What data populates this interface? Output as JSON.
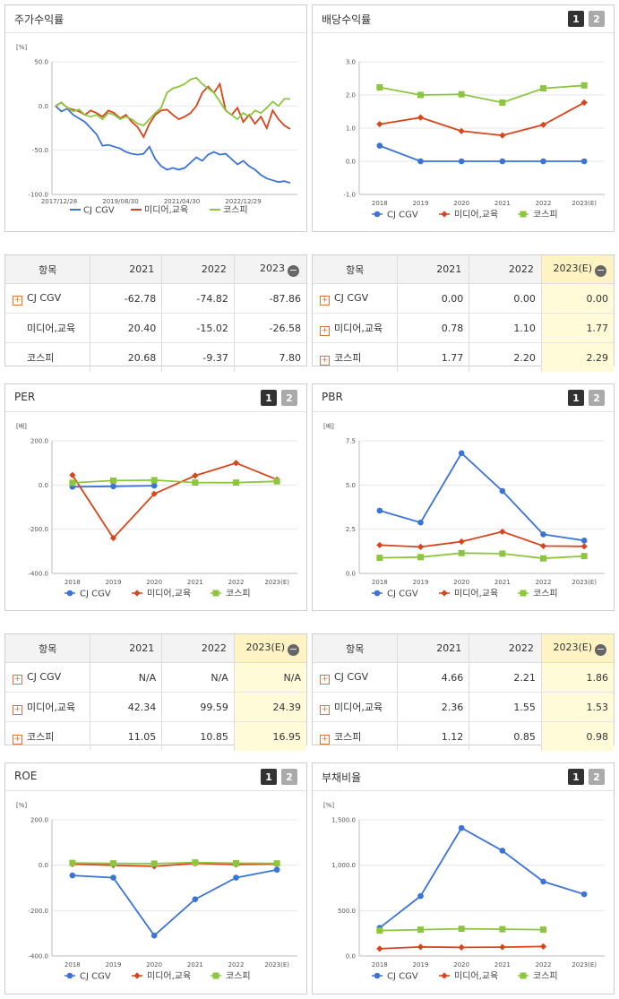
{
  "colors": {
    "cj": "#3b73d6",
    "media": "#d8441c",
    "kospi": "#8cc63f"
  },
  "legend": [
    "CJ CGV",
    "미디어,교육",
    "코스피"
  ],
  "panels": {
    "stock": {
      "title": "주가수익률"
    },
    "div": {
      "title": "배당수익률",
      "page1": "1",
      "page2": "2"
    },
    "per": {
      "title": "PER",
      "page1": "1",
      "page2": "2"
    },
    "pbr": {
      "title": "PBR",
      "page1": "1",
      "page2": "2"
    },
    "roe": {
      "title": "ROE",
      "page1": "1",
      "page2": "2"
    },
    "debt": {
      "title": "부채비율",
      "page1": "1",
      "page2": "2"
    }
  },
  "chart_data": [
    {
      "id": "stock",
      "type": "line",
      "title": "주가수익률",
      "unit": "[%]",
      "ylim": [
        -100,
        50
      ],
      "yticks": [
        "50.0",
        "0.0",
        "-50.0",
        "-100.0"
      ],
      "xticks": [
        "2017/12/28",
        "2019/08/30",
        "2021/04/30",
        "2022/12/29"
      ],
      "series": [
        {
          "name": "CJ CGV",
          "values": [
            0,
            -6,
            -3,
            -10,
            -14,
            -18,
            -25,
            -32,
            -45,
            -44,
            -46,
            -48,
            -52,
            -54,
            -55,
            -54,
            -46,
            -60,
            -68,
            -72,
            -70,
            -72,
            -70,
            -64,
            -58,
            -62,
            -55,
            -52,
            -55,
            -54,
            -60,
            -66,
            -62,
            -68,
            -72,
            -78,
            -82,
            -84,
            -86,
            -85,
            -87
          ]
        },
        {
          "name": "미디어,교육",
          "values": [
            0,
            4,
            -2,
            -4,
            -6,
            -10,
            -5,
            -8,
            -12,
            -5,
            -8,
            -14,
            -10,
            -18,
            -24,
            -35,
            -20,
            -10,
            -5,
            -4,
            -10,
            -15,
            -12,
            -8,
            0,
            15,
            22,
            15,
            25,
            -5,
            -10,
            -2,
            -18,
            -10,
            -20,
            -12,
            -25,
            -5,
            -15,
            -22,
            -26
          ]
        },
        {
          "name": "코스피",
          "values": [
            0,
            4,
            -2,
            -6,
            -4,
            -10,
            -12,
            -10,
            -15,
            -8,
            -10,
            -15,
            -12,
            -15,
            -20,
            -22,
            -15,
            -8,
            -2,
            15,
            20,
            22,
            25,
            30,
            32,
            25,
            20,
            15,
            5,
            -5,
            -10,
            -15,
            -8,
            -12,
            -5,
            -8,
            -2,
            5,
            0,
            8,
            8
          ]
        }
      ]
    },
    {
      "id": "div",
      "type": "line",
      "title": "배당수익률",
      "ylim": [
        -1,
        3
      ],
      "yticks": [
        "3.0",
        "2.0",
        "1.0",
        "0.0",
        "-1.0"
      ],
      "categories": [
        "2018",
        "2019",
        "2020",
        "2021",
        "2022",
        "2023(E)"
      ],
      "series": [
        {
          "name": "CJ CGV",
          "values": [
            0.47,
            0,
            0,
            0,
            0,
            0
          ]
        },
        {
          "name": "미디어,교육",
          "values": [
            1.12,
            1.32,
            0.91,
            0.78,
            1.1,
            1.77
          ]
        },
        {
          "name": "코스피",
          "values": [
            2.23,
            2.0,
            2.02,
            1.77,
            2.2,
            2.29
          ]
        }
      ]
    },
    {
      "id": "per",
      "type": "line",
      "title": "PER",
      "unit": "[배]",
      "ylim": [
        -400,
        200
      ],
      "yticks": [
        "200.0",
        "0.0",
        "-200.0",
        "-400.0"
      ],
      "categories": [
        "2018",
        "2019",
        "2020",
        "2021",
        "2022",
        "2023(E)"
      ],
      "series": [
        {
          "name": "CJ CGV",
          "values": [
            -8,
            -6,
            -3,
            null,
            null,
            null
          ]
        },
        {
          "name": "미디어,교육",
          "values": [
            45,
            -240,
            -40,
            42.34,
            99.59,
            24.39
          ]
        },
        {
          "name": "코스피",
          "values": [
            10,
            20,
            22,
            11.05,
            10.85,
            16.95
          ]
        }
      ]
    },
    {
      "id": "pbr",
      "type": "line",
      "title": "PBR",
      "unit": "[배]",
      "ylim": [
        0,
        7.5
      ],
      "yticks": [
        "7.5",
        "5.0",
        "2.5",
        "0.0"
      ],
      "categories": [
        "2018",
        "2019",
        "2020",
        "2021",
        "2022",
        "2023(E)"
      ],
      "series": [
        {
          "name": "CJ CGV",
          "values": [
            3.55,
            2.88,
            6.8,
            4.66,
            2.21,
            1.86
          ]
        },
        {
          "name": "미디어,교육",
          "values": [
            1.6,
            1.5,
            1.8,
            2.36,
            1.55,
            1.53
          ]
        },
        {
          "name": "코스피",
          "values": [
            0.88,
            0.92,
            1.15,
            1.12,
            0.85,
            0.98
          ]
        }
      ]
    },
    {
      "id": "roe",
      "type": "line",
      "title": "ROE",
      "unit": "[%]",
      "ylim": [
        -400,
        200
      ],
      "yticks": [
        "200.0",
        "0.0",
        "-200.0",
        "-400.0"
      ],
      "categories": [
        "2018",
        "2019",
        "2020",
        "2021",
        "2022",
        "2023(E)"
      ],
      "series": [
        {
          "name": "CJ CGV",
          "values": [
            -45,
            -55,
            -310,
            -150,
            -55,
            -20
          ]
        },
        {
          "name": "미디어,교육",
          "values": [
            5,
            0,
            -5,
            8,
            3,
            5
          ]
        },
        {
          "name": "코스피",
          "values": [
            10,
            8,
            7,
            12,
            9,
            8
          ]
        }
      ]
    },
    {
      "id": "debt",
      "type": "line",
      "title": "부채비율",
      "unit": "[%]",
      "ylim": [
        0,
        1500
      ],
      "yticks": [
        "1,500.0",
        "1,000.0",
        "500.0",
        "0.0"
      ],
      "categories": [
        "2018",
        "2019",
        "2020",
        "2021",
        "2022",
        "2023(E)"
      ],
      "series": [
        {
          "name": "CJ CGV",
          "values": [
            310,
            660,
            1410,
            1160,
            820,
            680
          ]
        },
        {
          "name": "미디어,교육",
          "values": [
            80,
            100,
            95,
            98,
            105,
            null
          ]
        },
        {
          "name": "코스피",
          "values": [
            280,
            290,
            300,
            295,
            290,
            null
          ]
        }
      ]
    }
  ],
  "tables": {
    "stock": {
      "header": [
        "항목",
        "2021",
        "2022",
        "2023"
      ],
      "rows": [
        {
          "label": "CJ CGV",
          "plus": true,
          "values": [
            "-62.78",
            "-74.82",
            "-87.86"
          ]
        },
        {
          "label": "미디어,교육",
          "plus": false,
          "values": [
            "20.40",
            "-15.02",
            "-26.58"
          ]
        },
        {
          "label": "코스피",
          "plus": false,
          "values": [
            "20.68",
            "-9.37",
            "7.80"
          ]
        }
      ]
    },
    "div": {
      "header": [
        "항목",
        "2021",
        "2022",
        "2023(E)"
      ],
      "rows": [
        {
          "label": "CJ CGV",
          "plus": true,
          "values": [
            "0.00",
            "0.00",
            "0.00"
          ]
        },
        {
          "label": "미디어,교육",
          "plus": true,
          "values": [
            "0.78",
            "1.10",
            "1.77"
          ]
        },
        {
          "label": "코스피",
          "plus": true,
          "values": [
            "1.77",
            "2.20",
            "2.29"
          ]
        }
      ]
    },
    "per": {
      "header": [
        "항목",
        "2021",
        "2022",
        "2023(E)"
      ],
      "rows": [
        {
          "label": "CJ CGV",
          "plus": true,
          "values": [
            "N/A",
            "N/A",
            "N/A"
          ]
        },
        {
          "label": "미디어,교육",
          "plus": true,
          "values": [
            "42.34",
            "99.59",
            "24.39"
          ]
        },
        {
          "label": "코스피",
          "plus": true,
          "values": [
            "11.05",
            "10.85",
            "16.95"
          ]
        }
      ]
    },
    "pbr": {
      "header": [
        "항목",
        "2021",
        "2022",
        "2023(E)"
      ],
      "rows": [
        {
          "label": "CJ CGV",
          "plus": true,
          "values": [
            "4.66",
            "2.21",
            "1.86"
          ]
        },
        {
          "label": "미디어,교육",
          "plus": true,
          "values": [
            "2.36",
            "1.55",
            "1.53"
          ]
        },
        {
          "label": "코스피",
          "plus": true,
          "values": [
            "1.12",
            "0.85",
            "0.98"
          ]
        }
      ]
    }
  }
}
